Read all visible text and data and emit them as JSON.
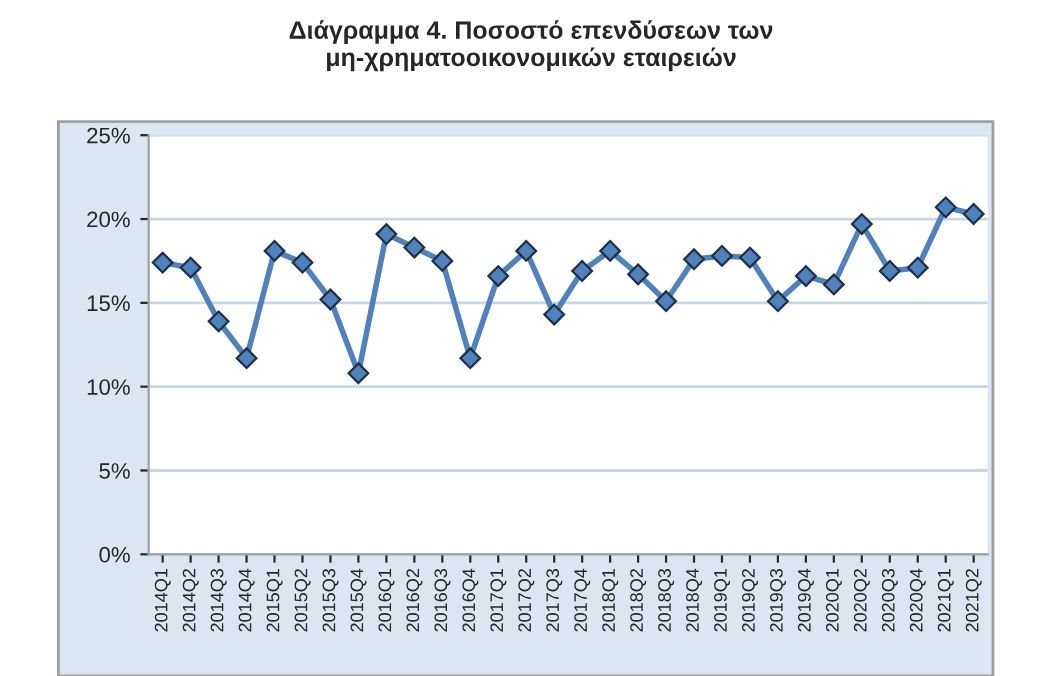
{
  "chart_data": {
    "type": "line",
    "title": "Διάγραμμα 4. Ποσοστό επενδύσεων των\nμη-χρηματοοικονομικών εταιρειών",
    "categories": [
      "2014Q1",
      "2014Q2",
      "2014Q3",
      "2014Q4",
      "2015Q1",
      "2015Q2",
      "2015Q3",
      "2015Q4",
      "2016Q1",
      "2016Q2",
      "2016Q3",
      "2016Q4",
      "2017Q1",
      "2017Q2",
      "2017Q3",
      "2017Q4",
      "2018Q1",
      "2018Q2",
      "2018Q3",
      "2018Q4",
      "2019Q1",
      "2019Q2",
      "2019Q3",
      "2019Q4",
      "2020Q1",
      "2020Q2",
      "2020Q3",
      "2020Q4",
      "2021Q1",
      "2021Q2"
    ],
    "series": [
      {
        "color": "#4f81bd",
        "values": [
          17.4,
          17.1,
          13.9,
          11.7,
          18.1,
          17.4,
          15.2,
          10.8,
          19.1,
          18.3,
          17.5,
          11.7,
          16.6,
          18.1,
          14.3,
          16.9,
          18.1,
          16.7,
          15.1,
          17.6,
          17.8,
          17.7,
          15.1,
          16.6,
          16.1,
          19.7,
          16.9,
          17.1,
          20.7,
          20.3
        ]
      }
    ],
    "ylim": [
      0,
      25
    ],
    "yticks": [
      {
        "value": 0,
        "label": "0%"
      },
      {
        "value": 5,
        "label": "5%"
      },
      {
        "value": 10,
        "label": "10%"
      },
      {
        "value": 15,
        "label": "15%"
      },
      {
        "value": 20,
        "label": "20%"
      },
      {
        "value": 25,
        "label": "25%"
      }
    ],
    "grid": "y",
    "marker": "diamond",
    "line_style": "solid",
    "legend": false
  }
}
